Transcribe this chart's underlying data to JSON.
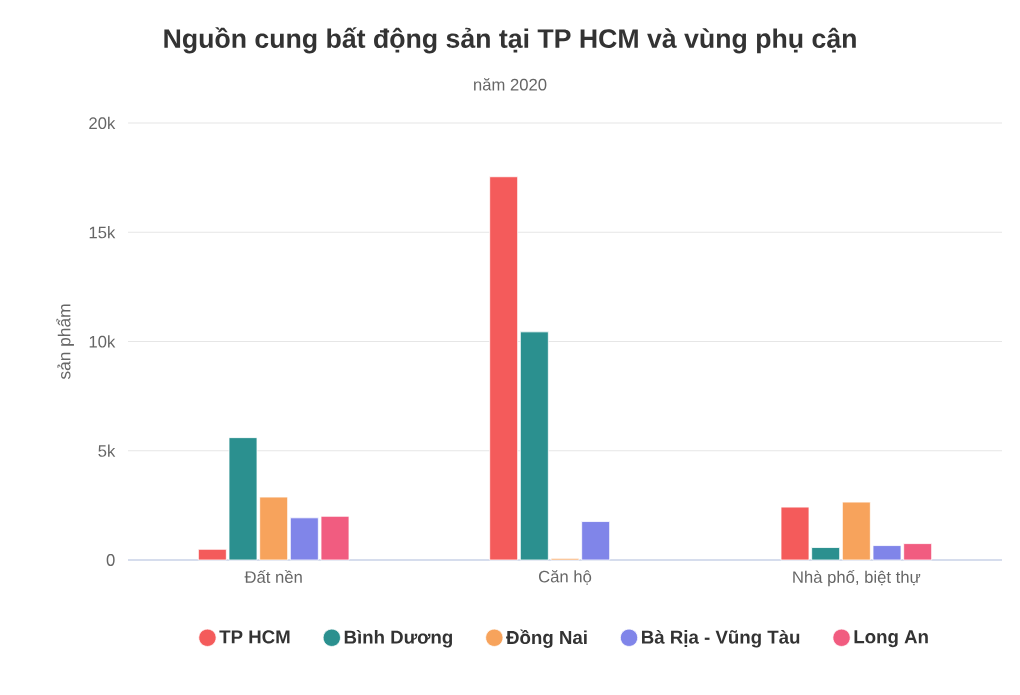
{
  "chart_data": {
    "type": "bar",
    "title": "Nguồn cung bất động sản tại TP HCM và vùng phụ cận",
    "subtitle": "năm 2020",
    "ylabel": "sản phẩm",
    "categories": [
      "Đất nền",
      "Căn hộ",
      "Nhà phố, biệt thự"
    ],
    "series": [
      {
        "name": "TP HCM",
        "color": "#f45b5b",
        "values": [
          490,
          17540,
          2420
        ]
      },
      {
        "name": "Bình Dương",
        "color": "#2b908f",
        "values": [
          5600,
          10440,
          570
        ]
      },
      {
        "name": "Đồng Nai",
        "color": "#f7a35c",
        "values": [
          2880,
          75,
          2650
        ]
      },
      {
        "name": "Bà Rịa - Vũng Tàu",
        "color": "#8085e9",
        "values": [
          1930,
          1760,
          660
        ]
      },
      {
        "name": "Long An",
        "color": "#f15c80",
        "values": [
          2000,
          null,
          750
        ]
      }
    ],
    "ylim": [
      0,
      20000
    ],
    "yticks": [
      0,
      {
        "value": 5000,
        "label": "5k"
      },
      {
        "value": 10000,
        "label": "10k"
      },
      {
        "value": 15000,
        "label": "15k"
      },
      {
        "value": 20000,
        "label": "20k"
      }
    ],
    "grid": "y",
    "legend": "bottom"
  }
}
